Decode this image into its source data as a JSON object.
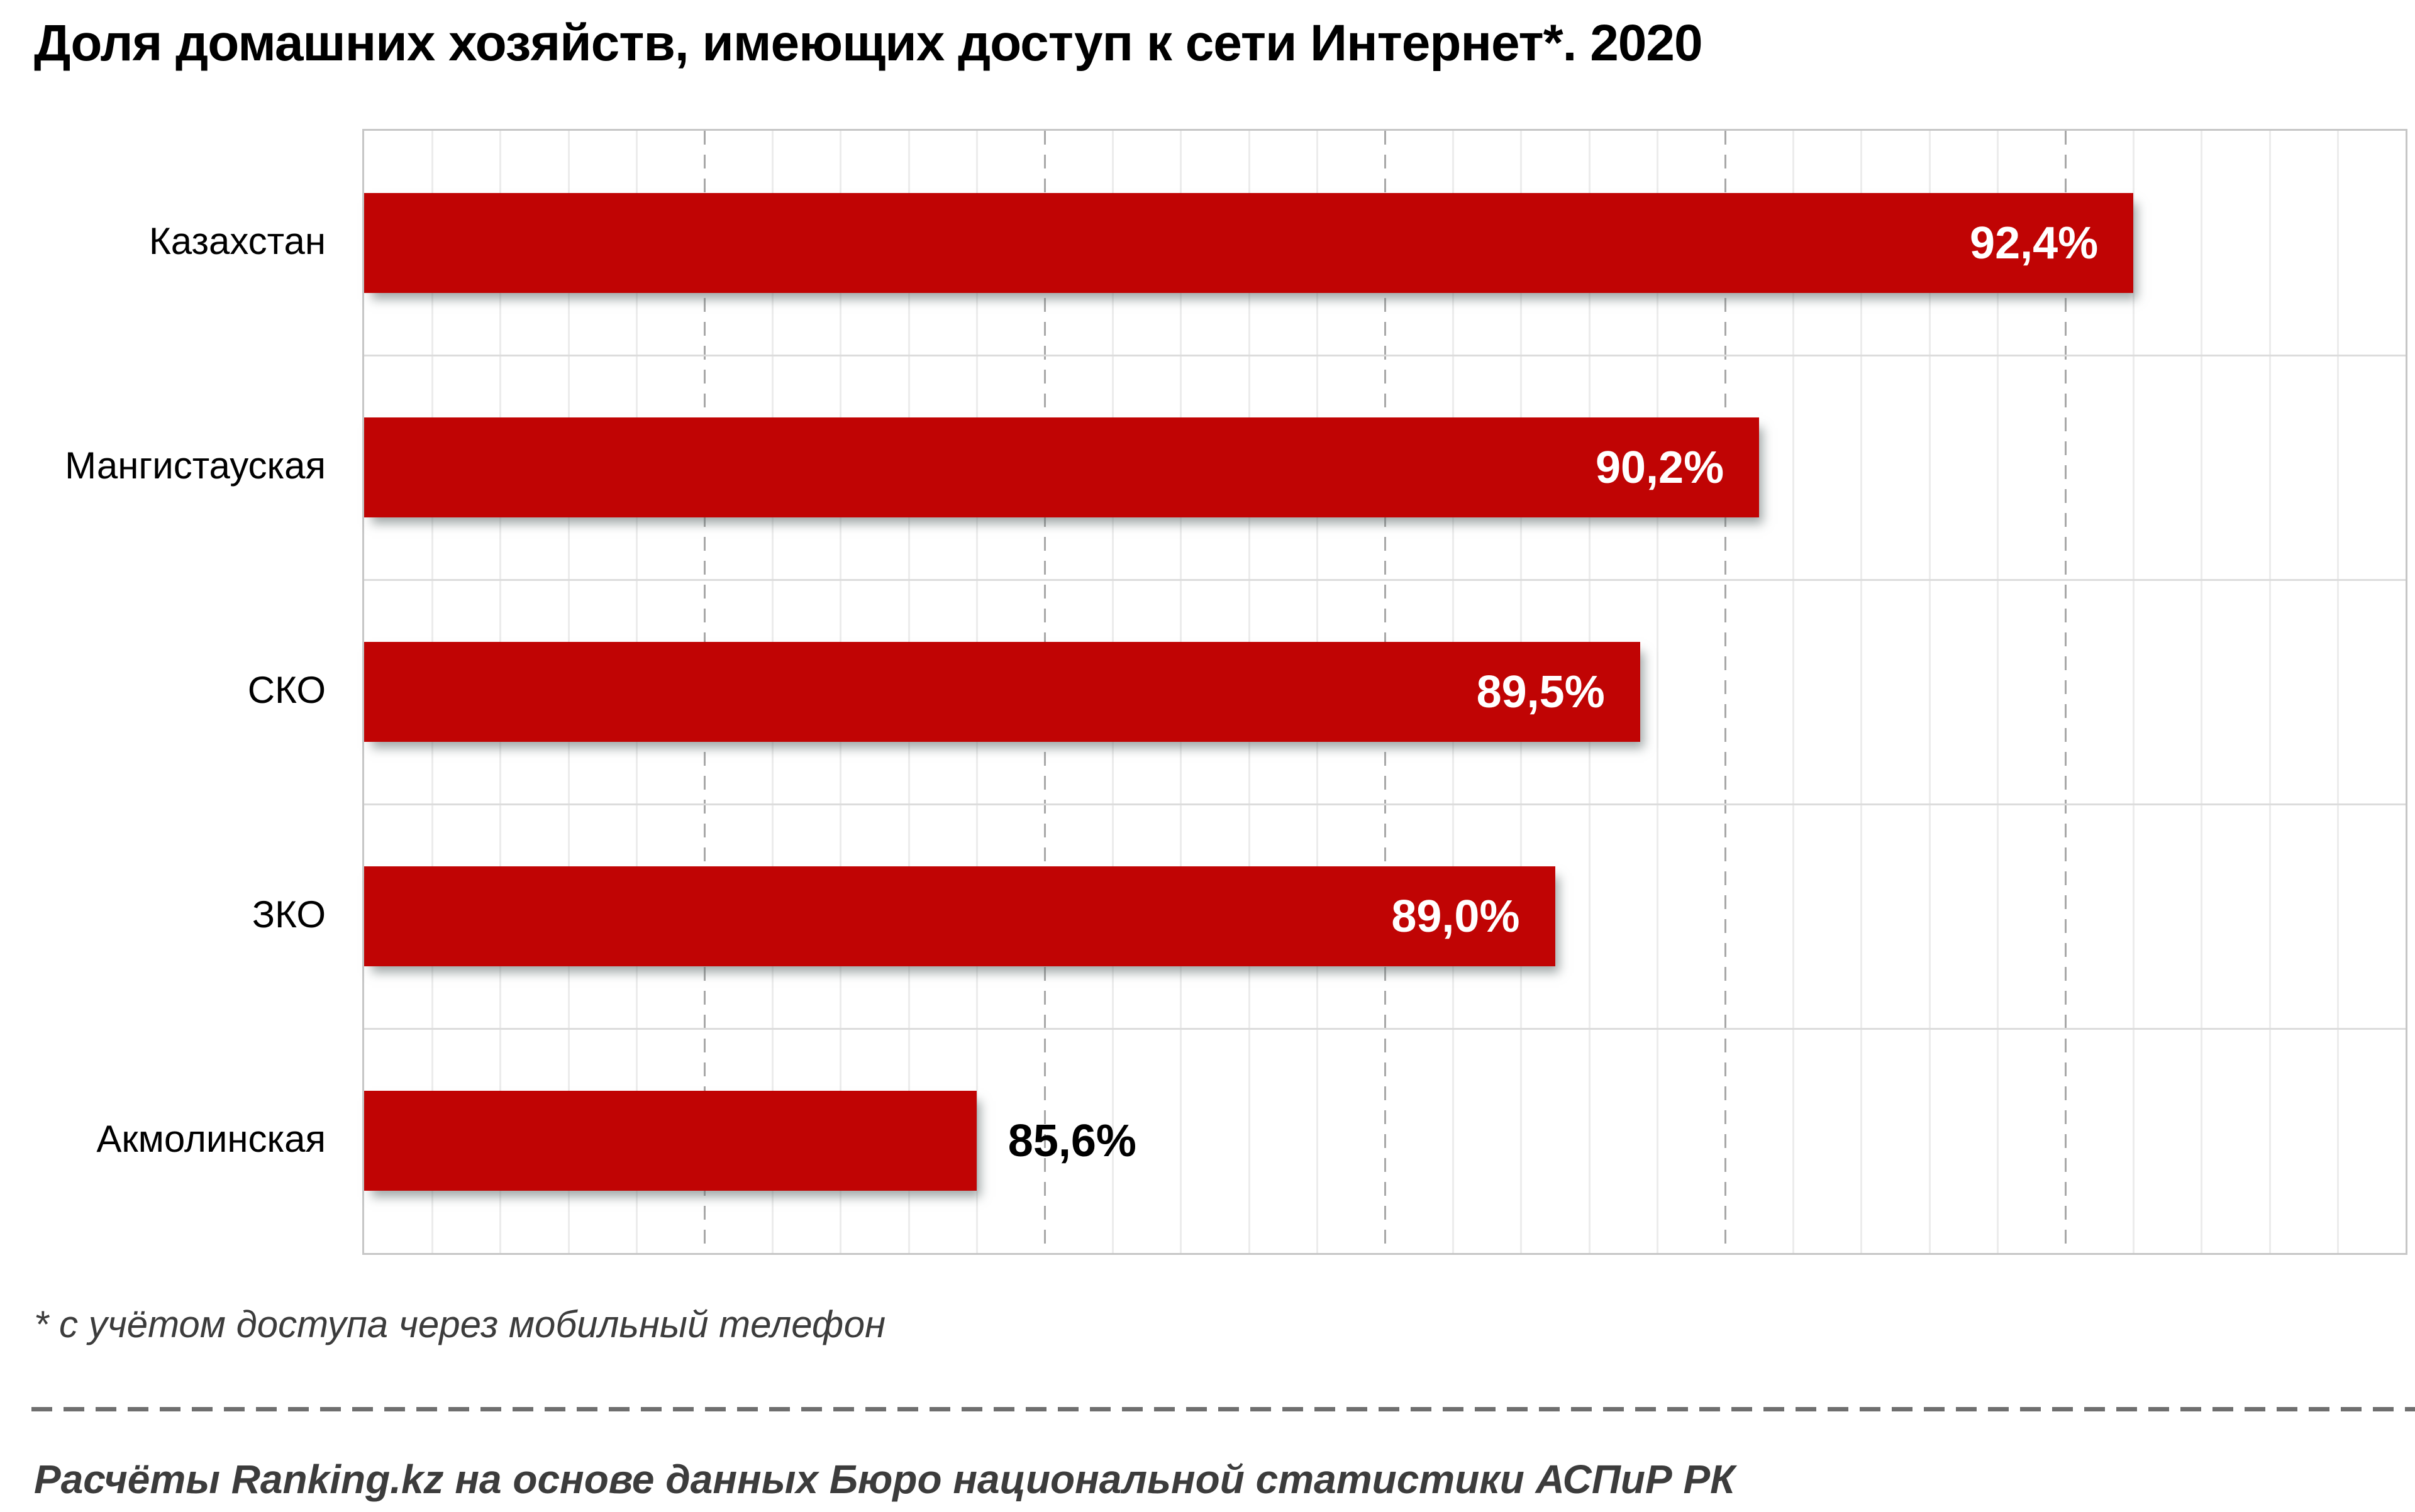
{
  "title": {
    "text": "Доля домашних хозяйств, имеющих доступ к сети Интернет*. 2020"
  },
  "footnote": {
    "text": "* с учётом доступа через мобильный телефон"
  },
  "source": {
    "text": "Расчёты Ranking.kz на основе данных Бюро национальной статистики АСПиР РК"
  },
  "colors": {
    "bar_fill": "#C00404",
    "value_label_inside": "#FFFFFF",
    "value_label_outside": "#000000",
    "category_label": "#000000",
    "plot_border": "#C6C6C6",
    "row_separator": "#DCDCDC",
    "grid_minor": "#ECECEC",
    "grid_major": "#A8A8A8",
    "note_text": "#3C3C3C",
    "divider": "#6F6F6F",
    "title_text": "#000000"
  },
  "chart_data": {
    "type": "bar",
    "orientation": "horizontal",
    "title": "Доля домашних хозяйств, имеющих доступ к сети Интернет*. 2020",
    "categories": [
      "Казахстан",
      "Мангистауская",
      "СКО",
      "ЗКО",
      "Акмолинская"
    ],
    "values": [
      92.4,
      90.2,
      89.5,
      89.0,
      85.6
    ],
    "value_labels": [
      "92,4%",
      "90,2%",
      "89,5%",
      "89,0%",
      "85,6%"
    ],
    "value_label_placement": [
      "inside",
      "inside",
      "inside",
      "inside",
      "outside"
    ],
    "xlim": [
      82,
      94
    ],
    "x_major_ticks": [
      84,
      86,
      88,
      90,
      92
    ],
    "x_minor_unit": 0.4,
    "x_major_gridline_style": "dashed",
    "x_minor_gridline_style": "solid",
    "axis_tick_labels_visible": false,
    "legend": "none",
    "bar_color": "#C00404"
  }
}
